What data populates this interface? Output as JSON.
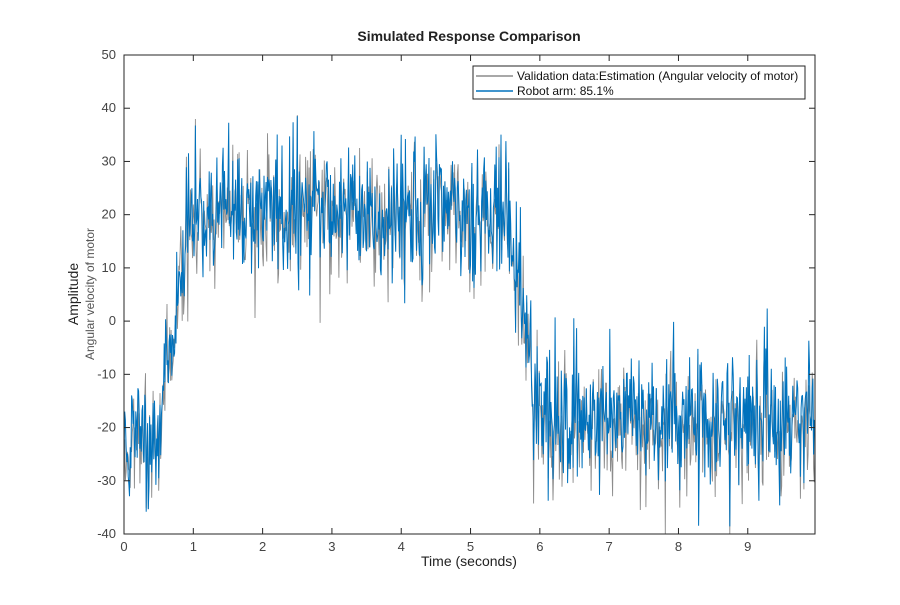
{
  "chart_data": {
    "type": "line",
    "title": "Simulated Response Comparison",
    "xlabel": "Time (seconds)",
    "ylabel": "Amplitude",
    "ylabel_sub": "Angular velocity of motor",
    "xlim": [
      0,
      9.97
    ],
    "ylim": [
      -40,
      50
    ],
    "xticks": [
      0,
      1,
      2,
      3,
      4,
      5,
      6,
      7,
      8,
      9
    ],
    "yticks": [
      -40,
      -30,
      -20,
      -10,
      0,
      10,
      20,
      30,
      40,
      50
    ],
    "grid": false,
    "legend_position": "top-right",
    "sample_time": 0.01,
    "series": [
      {
        "name": "Validation data:Estimation (Angular velocity of motor)",
        "color": "#8c8c8c",
        "mean_profile": {
          "t": [
            0,
            0.5,
            0.9,
            1.0,
            5.5,
            5.65,
            6.0,
            9.97
          ],
          "y": [
            -26,
            -20,
            15,
            20,
            20,
            10,
            -20,
            -20
          ]
        },
        "noise_std": 6.5,
        "seed": 11
      },
      {
        "name": "Robot arm: 85.1%",
        "color": "#0072bd",
        "mean_profile": {
          "t": [
            0,
            0.5,
            0.9,
            1.0,
            5.5,
            5.65,
            6.0,
            9.97
          ],
          "y": [
            -24,
            -19,
            15,
            21,
            21,
            11,
            -18,
            -18
          ]
        },
        "noise_std": 6.5,
        "seed": 11,
        "fit_percent": 85.1
      }
    ]
  }
}
